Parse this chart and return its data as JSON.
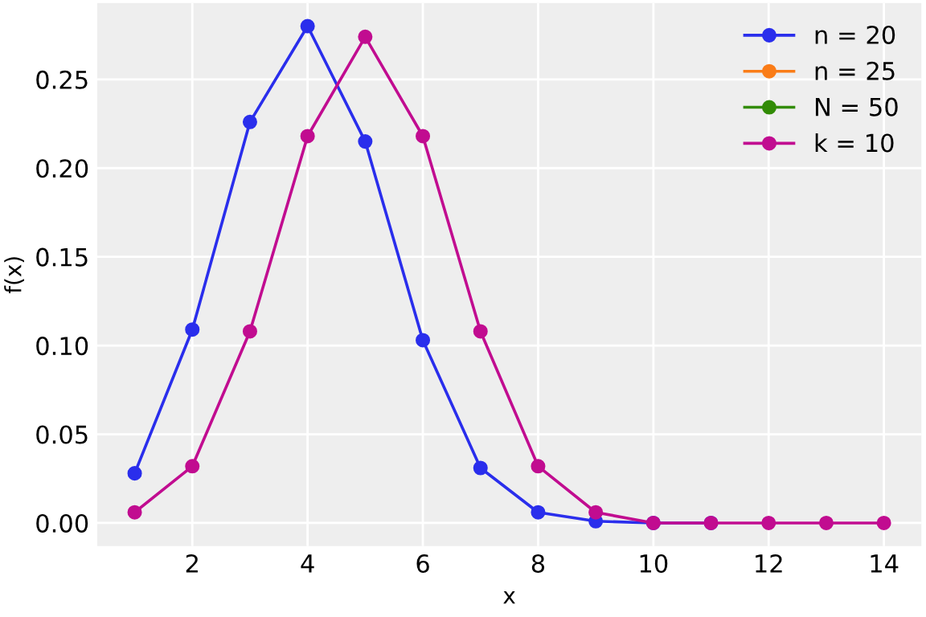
{
  "chart_data": {
    "type": "line",
    "xlabel": "x",
    "ylabel": "f(x)",
    "x": [
      1,
      2,
      3,
      4,
      5,
      6,
      7,
      8,
      9,
      10,
      11,
      12,
      13,
      14
    ],
    "series": [
      {
        "name": "n = 20",
        "color": "#2a2eec",
        "values": [
          0.028,
          0.109,
          0.226,
          0.28,
          0.215,
          0.103,
          0.031,
          0.006,
          0.001,
          0.0,
          0.0,
          null,
          null,
          null
        ]
      },
      {
        "name": "n = 25",
        "color": "#fa7c17",
        "values": [
          null,
          null,
          null,
          null,
          null,
          null,
          null,
          null,
          null,
          null,
          null,
          null,
          null,
          null
        ]
      },
      {
        "name": "N = 50",
        "color": "#328c06",
        "values": [
          null,
          null,
          null,
          null,
          null,
          null,
          null,
          null,
          null,
          null,
          null,
          null,
          null,
          null
        ]
      },
      {
        "name": "k = 10",
        "color": "#c10c90",
        "values": [
          0.006,
          0.032,
          0.108,
          0.218,
          0.274,
          0.218,
          0.108,
          0.032,
          0.006,
          0.0,
          0.0,
          0.0,
          0.0,
          0.0
        ]
      }
    ],
    "xlim": [
      0.35,
      14.65
    ],
    "ylim": [
      -0.013,
      0.293
    ],
    "xticks": [
      2,
      4,
      6,
      8,
      10,
      12,
      14
    ],
    "yticks": [
      {
        "value": 0,
        "label": "0.00"
      },
      {
        "value": 0.05,
        "label": "0.05"
      },
      {
        "value": 0.1,
        "label": "0.10"
      },
      {
        "value": 0.15,
        "label": "0.15"
      },
      {
        "value": 0.2,
        "label": "0.20"
      },
      {
        "value": 0.25,
        "label": "0.25"
      }
    ],
    "grid": true,
    "legend": "top right",
    "marker": "circle",
    "line_style": "solid"
  }
}
